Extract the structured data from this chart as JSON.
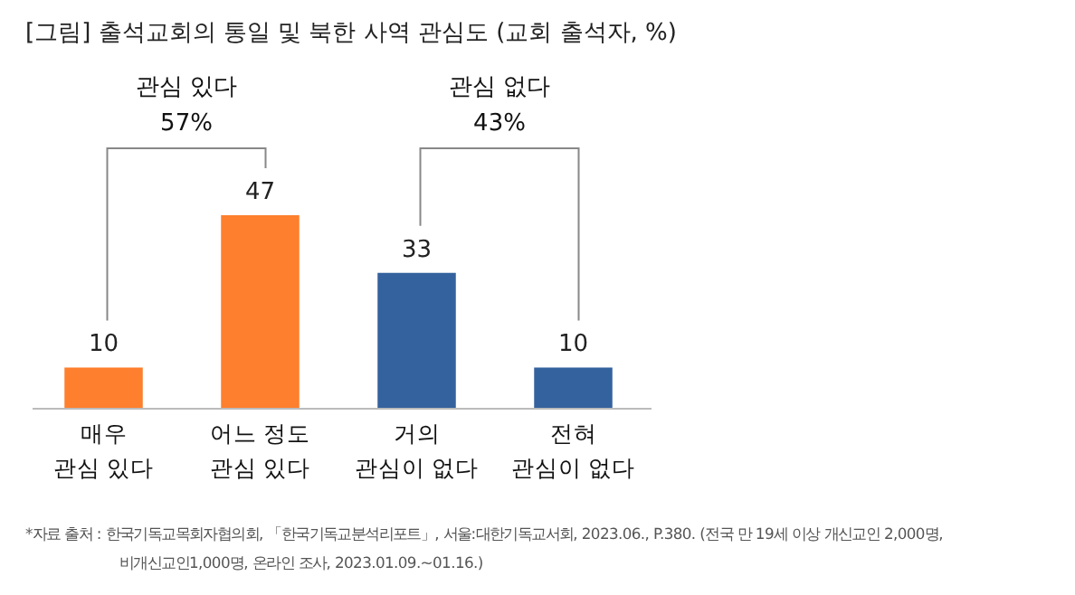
{
  "chart_data": {
    "type": "bar",
    "title": "[그림] 출석교회의 통일 및 북한 사역 관심도 (교회 출석자, %)",
    "categories": [
      "매우\n관심 있다",
      "어느 정도\n관심 있다",
      "거의\n관심이 없다",
      "전혀\n관심이 없다"
    ],
    "values": [
      10,
      47,
      33,
      10
    ],
    "colors": [
      "#fe7f2d",
      "#fe7f2d",
      "#34629e",
      "#34629e"
    ],
    "data_labels": true,
    "annotations": [
      "관심 있다\n57%",
      "관심 없다\n43%",
      "*자료 출처 : 한국기독교목회자협의회, 「한국기독교분석리포트」, 서울:대한기독교서회, 2023.06., P.380. (전국 만 19세 이상 개신교인 2,000명,\n비개신교인1,000명, 온라인 조사, 2023.01.09.~01.16.)"
    ]
  }
}
